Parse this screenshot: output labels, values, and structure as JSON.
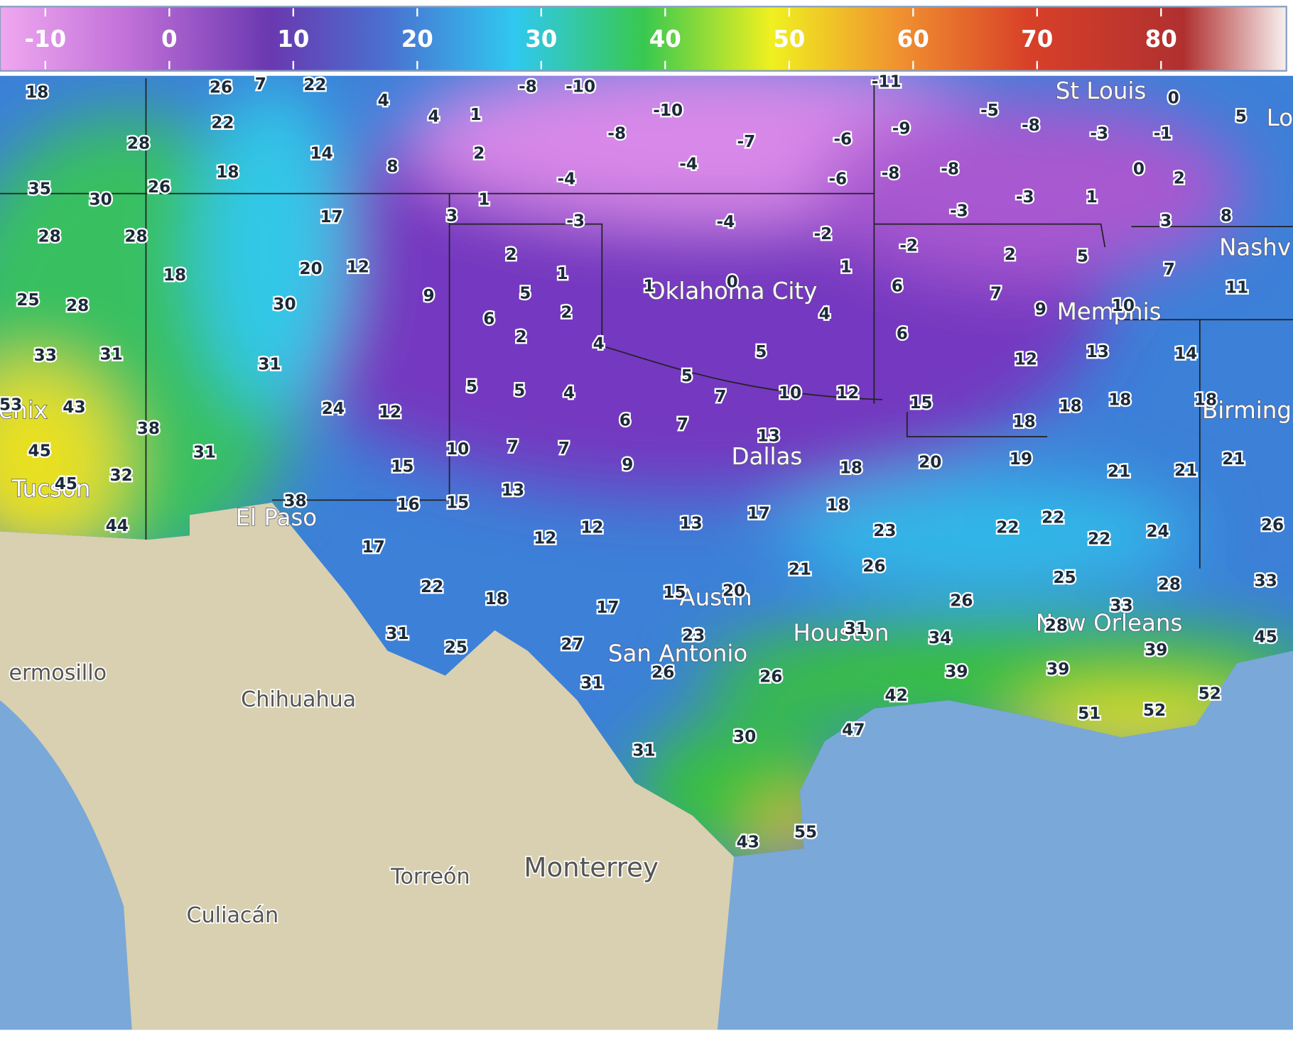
{
  "colorbar": {
    "ticks": [
      -10,
      0,
      10,
      20,
      30,
      40,
      50,
      60,
      70,
      80
    ]
  },
  "cities": [
    "St Louis",
    "Lo",
    "Nashv",
    "Oklahoma City",
    "Memphis",
    "Birming",
    "Dallas",
    "El Paso",
    "Tucson",
    "enix",
    "Austin",
    "Houston",
    "San Antonio",
    "New Orleans",
    "ermosillo",
    "Chihuahua",
    "Torreón",
    "Monterrey",
    "Culiacán"
  ],
  "stations": [
    18,
    26,
    7,
    22,
    4,
    4,
    1,
    -8,
    -10,
    -11,
    0,
    5,
    -5,
    -8,
    -3,
    -1,
    0,
    2,
    -10,
    -8,
    -7,
    -6,
    -9,
    -4,
    -4,
    -6,
    -8,
    -8,
    22,
    28,
    14,
    8,
    2,
    18,
    35,
    30,
    26,
    1,
    3,
    17,
    -3,
    -4,
    -2,
    -3,
    -3,
    1,
    3,
    8,
    28,
    28,
    18,
    20,
    12,
    2,
    1,
    9,
    5,
    2,
    6,
    2,
    1,
    0,
    1,
    4,
    -2,
    2,
    5,
    7,
    11,
    6,
    7,
    9,
    10,
    6,
    25,
    28,
    30,
    33,
    31,
    31,
    4,
    5,
    5,
    7,
    10,
    12,
    15,
    12,
    13,
    14,
    53,
    43,
    45,
    38,
    31,
    24,
    12,
    5,
    5,
    4,
    6,
    7,
    13,
    18,
    18,
    18,
    18,
    45,
    32,
    44,
    38,
    15,
    10,
    7,
    7,
    9,
    18,
    20,
    19,
    21,
    21,
    21,
    16,
    15,
    13,
    12,
    12,
    13,
    17,
    18,
    23,
    22,
    22,
    22,
    24,
    26,
    17,
    22,
    18,
    17,
    15,
    20,
    21,
    26,
    26,
    25,
    28,
    33,
    31,
    25,
    27,
    23,
    26,
    31,
    34,
    28,
    33,
    45,
    31,
    26,
    39,
    39,
    39,
    42,
    47,
    51,
    52,
    52,
    30,
    31,
    43,
    55
  ]
}
